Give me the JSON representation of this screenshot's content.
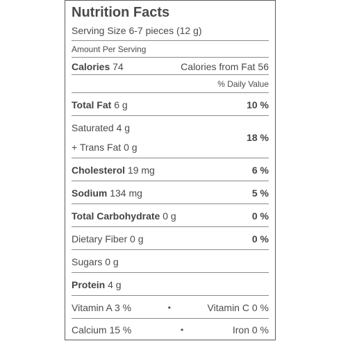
{
  "label": {
    "title": "Nutrition Facts",
    "serving_size": "Serving Size 6-7 pieces (12 g)",
    "amount_per_serving": "Amount Per Serving",
    "calories_label": "Calories",
    "calories_value": "74",
    "calories_from_fat": "Calories from Fat 56",
    "daily_value_header": "% Daily Value",
    "total_fat_label": "Total Fat",
    "total_fat_value": "6 g",
    "total_fat_pct": "10 %",
    "saturated_fat": "Saturated 4 g",
    "trans_fat": "+ Trans Fat 0 g",
    "saturated_pct": "18 %",
    "cholesterol_label": "Cholesterol",
    "cholesterol_value": "19 mg",
    "cholesterol_pct": "6 %",
    "sodium_label": "Sodium",
    "sodium_value": "134 mg",
    "sodium_pct": "5 %",
    "carb_label": "Total Carbohydrate",
    "carb_value": "0 g",
    "carb_pct": "0 %",
    "fiber": "Dietary Fiber 0 g",
    "fiber_pct": "0 %",
    "sugars": "Sugars 0 g",
    "protein_label": "Protein",
    "protein_value": "4 g",
    "vitamin_a": "Vitamin A 3 %",
    "vitamin_c": "Vitamin C 0 %",
    "calcium": "Calcium 15 %",
    "iron": "Iron 0 %",
    "bullet": "•"
  }
}
